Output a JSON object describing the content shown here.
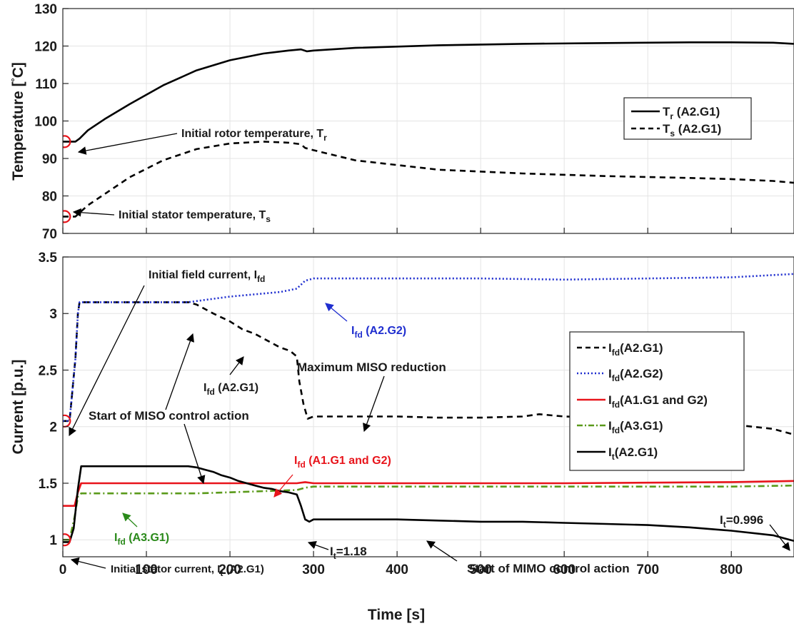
{
  "chart_data": [
    {
      "type": "line",
      "ylabel": "Temperature [°C]",
      "ylabel_parts": [
        "Temperature [",
        "°",
        "C]"
      ],
      "xlim": [
        0,
        875
      ],
      "ylim": [
        70,
        130
      ],
      "xticks": [
        0,
        100,
        200,
        300,
        400,
        500,
        600,
        700,
        800
      ],
      "yticks": [
        70,
        80,
        90,
        100,
        110,
        120,
        130
      ],
      "grid": true,
      "legend_position": "right",
      "series": [
        {
          "name": "Tr (A2.G1)",
          "label_main": "T",
          "label_sub": "r",
          "label_tail": " (A2.G1)",
          "color": "#000000",
          "style": "solid",
          "x": [
            0,
            8,
            15,
            20,
            30,
            50,
            80,
            120,
            160,
            200,
            240,
            270,
            285,
            292,
            300,
            350,
            450,
            550,
            650,
            750,
            800,
            850,
            875
          ],
          "y": [
            94.5,
            94.5,
            94.5,
            95.3,
            97.5,
            100.5,
            104.5,
            109.5,
            113.5,
            116.2,
            118,
            118.8,
            119.1,
            118.6,
            118.8,
            119.5,
            120.2,
            120.6,
            120.8,
            121,
            121,
            120.9,
            120.6
          ]
        },
        {
          "name": "Ts (A2.G1)",
          "label_main": "T",
          "label_sub": "s",
          "label_tail": " (A2.G1)",
          "color": "#000000",
          "style": "dashed",
          "x": [
            0,
            8,
            15,
            20,
            30,
            50,
            80,
            120,
            160,
            200,
            240,
            270,
            285,
            290,
            300,
            350,
            450,
            550,
            650,
            750,
            800,
            850,
            875
          ],
          "y": [
            74.5,
            74.5,
            74.5,
            75.5,
            77.5,
            80.5,
            85,
            89.5,
            92.5,
            94,
            94.5,
            94.2,
            93.8,
            92.8,
            92.2,
            89.5,
            87,
            86,
            85.3,
            84.8,
            84.5,
            84,
            83.5
          ]
        }
      ],
      "markers": [
        {
          "x": 2,
          "y": 94.5,
          "shape": "circle",
          "color": "#e8141b"
        },
        {
          "x": 2,
          "y": 74.5,
          "shape": "circle",
          "color": "#e8141b"
        }
      ],
      "annotations": [
        {
          "name": "annotation-initial-rotor",
          "main": "Initial rotor temperature, T",
          "sub": "r",
          "tail": ""
        },
        {
          "name": "annotation-initial-stator",
          "main": "Initial stator temperature, T",
          "sub": "s",
          "tail": ""
        }
      ]
    },
    {
      "type": "line",
      "xlabel": "Time [s]",
      "ylabel": "Current [p.u.]",
      "xlim": [
        0,
        875
      ],
      "ylim": [
        0.85,
        3.5
      ],
      "xticks": [
        0,
        100,
        200,
        300,
        400,
        500,
        600,
        700,
        800
      ],
      "yticks": [
        1,
        1.5,
        2,
        2.5,
        3,
        3.5
      ],
      "grid": true,
      "legend_position": "right",
      "series": [
        {
          "name": "Ifd(A2.G1)",
          "label_main": "I",
          "label_sub": "fd",
          "label_tail": "(A2.G1)",
          "color": "#000000",
          "style": "dashed",
          "x": [
            0,
            8,
            15,
            18,
            20,
            50,
            100,
            150,
            160,
            180,
            200,
            215,
            230,
            245,
            260,
            272,
            280,
            283,
            288,
            293,
            300,
            350,
            400,
            450,
            500,
            550,
            570,
            600,
            650,
            700,
            750,
            800,
            850,
            875
          ],
          "y": [
            2.05,
            2.05,
            2.6,
            3.0,
            3.1,
            3.1,
            3.1,
            3.1,
            3.08,
            3.0,
            2.93,
            2.86,
            2.82,
            2.76,
            2.7,
            2.67,
            2.62,
            2.4,
            2.2,
            2.07,
            2.09,
            2.09,
            2.09,
            2.08,
            2.08,
            2.09,
            2.11,
            2.09,
            2.08,
            2.07,
            2.05,
            2.02,
            1.98,
            1.93
          ]
        },
        {
          "name": "Ifd(A2.G2)",
          "label_main": "I",
          "label_sub": "fd",
          "label_tail": "(A2.G2)",
          "color": "#1f2ecf",
          "style": "dotted",
          "x": [
            0,
            8,
            15,
            18,
            20,
            50,
            100,
            150,
            170,
            200,
            230,
            260,
            280,
            290,
            300,
            350,
            400,
            500,
            600,
            700,
            800,
            875
          ],
          "y": [
            2.05,
            2.05,
            2.6,
            3.0,
            3.1,
            3.1,
            3.1,
            3.1,
            3.12,
            3.15,
            3.17,
            3.19,
            3.22,
            3.29,
            3.31,
            3.31,
            3.31,
            3.31,
            3.3,
            3.31,
            3.32,
            3.35
          ]
        },
        {
          "name": "Ifd(A1.G1 and G2)",
          "label_main": "I",
          "label_sub": "fd",
          "label_tail": "(A1.G1 and G2)",
          "color": "#e8141b",
          "style": "solid",
          "x": [
            0,
            8,
            14,
            18,
            22,
            100,
            200,
            280,
            290,
            300,
            400,
            600,
            800,
            875
          ],
          "y": [
            1.3,
            1.3,
            1.3,
            1.42,
            1.5,
            1.5,
            1.5,
            1.5,
            1.51,
            1.5,
            1.5,
            1.5,
            1.51,
            1.52
          ]
        },
        {
          "name": "Ifd(A3.G1)",
          "label_main": "I",
          "label_sub": "fd",
          "label_tail": "(A3.G1)",
          "color": "#5a9a1a",
          "style": "dashdot",
          "x": [
            0,
            8,
            14,
            18,
            22,
            100,
            160,
            200,
            240,
            280,
            290,
            300,
            400,
            600,
            800,
            875
          ],
          "y": [
            1.0,
            1.0,
            1.2,
            1.38,
            1.41,
            1.41,
            1.41,
            1.42,
            1.43,
            1.44,
            1.46,
            1.47,
            1.47,
            1.47,
            1.47,
            1.48
          ]
        },
        {
          "name": "It(A2.G1)",
          "label_main": "I",
          "label_sub": "t",
          "label_tail": "(A2.G1)",
          "color": "#000000",
          "style": "solid",
          "x": [
            0,
            8,
            13,
            18,
            22,
            50,
            100,
            150,
            160,
            170,
            180,
            190,
            200,
            210,
            220,
            230,
            240,
            250,
            260,
            270,
            280,
            285,
            290,
            295,
            300,
            350,
            400,
            450,
            500,
            550,
            600,
            650,
            700,
            750,
            800,
            850,
            870,
            875
          ],
          "y": [
            0.98,
            0.98,
            1.1,
            1.45,
            1.65,
            1.65,
            1.65,
            1.65,
            1.64,
            1.62,
            1.6,
            1.57,
            1.55,
            1.52,
            1.5,
            1.48,
            1.46,
            1.45,
            1.43,
            1.42,
            1.4,
            1.3,
            1.18,
            1.16,
            1.18,
            1.18,
            1.18,
            1.17,
            1.16,
            1.16,
            1.15,
            1.14,
            1.13,
            1.11,
            1.08,
            1.04,
            1.0,
            0.99
          ]
        }
      ],
      "markers": [
        {
          "x": 2,
          "y": 2.05,
          "shape": "circle",
          "color": "#e8141b"
        },
        {
          "x": 2,
          "y": 1.0,
          "shape": "circle",
          "color": "#e8141b"
        }
      ],
      "annotations": [
        {
          "name": "annotation-initial-field-current",
          "main": "Initial field current, I",
          "sub": "fd",
          "tail": ""
        },
        {
          "name": "annotation-ifd-a2g2",
          "main": "I",
          "sub": "fd",
          "tail": " (A2.G2)",
          "color": "#1f2ecf"
        },
        {
          "name": "annotation-ifd-a2g1",
          "main": "I",
          "sub": "fd",
          "tail": " (A2.G1)"
        },
        {
          "name": "annotation-max-miso",
          "main": "Maximum MISO reduction",
          "sub": "",
          "tail": ""
        },
        {
          "name": "annotation-start-miso",
          "main": "Start of MISO control action",
          "sub": "",
          "tail": ""
        },
        {
          "name": "annotation-ifd-a1",
          "main": "I",
          "sub": "fd",
          "tail": " (A1.G1 and G2)",
          "color": "#e8141b"
        },
        {
          "name": "annotation-ifd-a3",
          "main": "I",
          "sub": "fd",
          "tail": " (A3.G1)",
          "color": "#2a8a1a"
        },
        {
          "name": "annotation-it-118",
          "main": "I",
          "sub": "t",
          "tail": "=1.18"
        },
        {
          "name": "annotation-it-0996",
          "main": "I",
          "sub": "t",
          "tail": "=0.996"
        },
        {
          "name": "annotation-start-mimo",
          "main": "Start of MIMO control action",
          "sub": "",
          "tail": ""
        },
        {
          "name": "annotation-initial-stator-current",
          "main": "Initial stator current, I",
          "sub": "t",
          "tail": " (A2.G1)"
        }
      ]
    }
  ]
}
